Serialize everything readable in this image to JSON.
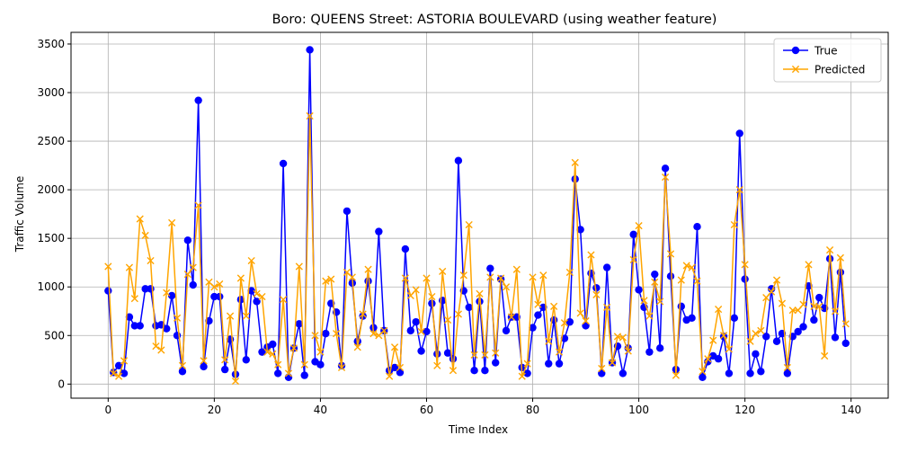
{
  "chart_data": {
    "type": "line",
    "title": "Boro: QUEENS Street: ASTORIA BOULEVARD (using weather feature)",
    "xlabel": "Time Index",
    "ylabel": "Traffic Volume",
    "xlim": [
      -7,
      147
    ],
    "ylim": [
      -145,
      3620
    ],
    "x_ticks": [
      0,
      20,
      40,
      60,
      80,
      100,
      120,
      140
    ],
    "y_ticks": [
      0,
      500,
      1000,
      1500,
      2000,
      2500,
      3000,
      3500
    ],
    "grid": true,
    "legend_position": "top-right",
    "series": [
      {
        "name": "True",
        "color": "#0000ff",
        "marker": "circle",
        "values": [
          960,
          120,
          190,
          110,
          690,
          600,
          600,
          980,
          980,
          600,
          610,
          570,
          910,
          500,
          130,
          1480,
          1020,
          2920,
          180,
          650,
          900,
          900,
          150,
          460,
          100,
          870,
          250,
          960,
          850,
          330,
          380,
          410,
          110,
          2270,
          70,
          370,
          620,
          90,
          3440,
          230,
          200,
          520,
          830,
          740,
          190,
          1780,
          1040,
          440,
          700,
          1060,
          580,
          1570,
          550,
          140,
          170,
          120,
          1390,
          550,
          640,
          340,
          540,
          830,
          310,
          860,
          320,
          260,
          2300,
          960,
          790,
          140,
          850,
          140,
          1190,
          220,
          1080,
          550,
          690,
          690,
          170,
          110,
          580,
          710,
          790,
          210,
          660,
          210,
          470,
          640,
          2110,
          1590,
          600,
          1140,
          990,
          110,
          1200,
          220,
          390,
          110,
          370,
          1540,
          970,
          790,
          330,
          1130,
          370,
          2220,
          1110,
          150,
          800,
          660,
          680,
          1620,
          70,
          230,
          290,
          260,
          490,
          110,
          680,
          2580,
          1080,
          110,
          310,
          130,
          490,
          980,
          440,
          520,
          110,
          490,
          540,
          590,
          1010,
          660,
          890,
          780,
          1290,
          480,
          1150,
          420
        ]
      },
      {
        "name": "Predicted",
        "color": "#ffa500",
        "marker": "x",
        "values": [
          1210,
          110,
          80,
          240,
          1200,
          880,
          1700,
          1530,
          1270,
          390,
          350,
          940,
          1660,
          680,
          190,
          1130,
          1200,
          1840,
          240,
          1050,
          1000,
          1030,
          250,
          700,
          30,
          1090,
          700,
          1270,
          930,
          900,
          330,
          310,
          200,
          870,
          110,
          370,
          1210,
          200,
          2760,
          500,
          330,
          1060,
          1080,
          520,
          170,
          1150,
          1100,
          380,
          720,
          1180,
          520,
          500,
          550,
          80,
          380,
          170,
          1090,
          910,
          970,
          540,
          1090,
          900,
          190,
          1160,
          660,
          140,
          720,
          1120,
          1640,
          300,
          930,
          300,
          1100,
          320,
          1090,
          1000,
          690,
          1180,
          80,
          210,
          1100,
          820,
          1120,
          440,
          800,
          330,
          630,
          1150,
          2280,
          730,
          650,
          1330,
          920,
          160,
          790,
          220,
          490,
          480,
          340,
          1280,
          1630,
          860,
          700,
          1050,
          850,
          2130,
          1340,
          90,
          1070,
          1220,
          1200,
          1060,
          130,
          260,
          450,
          770,
          500,
          360,
          1640,
          2000,
          1230,
          440,
          520,
          550,
          890,
          950,
          1070,
          830,
          170,
          760,
          760,
          820,
          1230,
          800,
          800,
          290,
          1380,
          750,
          1300,
          620
        ]
      }
    ]
  }
}
